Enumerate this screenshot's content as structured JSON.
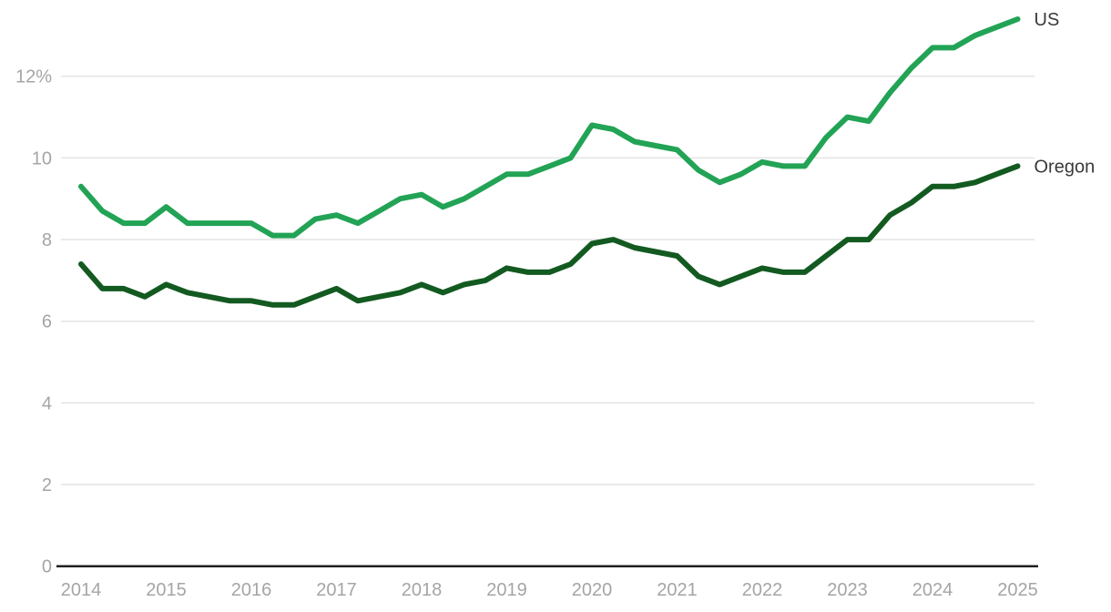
{
  "chart_data": {
    "type": "line",
    "title": "",
    "x_start_year": 2014,
    "points_per_year": 4,
    "x_tick_labels": [
      "2014",
      "2015",
      "2016",
      "2017",
      "2018",
      "2019",
      "2020",
      "2021",
      "2022",
      "2023",
      "2024",
      "2025"
    ],
    "y_tick_values": [
      0,
      2,
      4,
      6,
      8,
      10,
      12
    ],
    "y_tick_labels": [
      "0",
      "2",
      "4",
      "6",
      "8",
      "10",
      "12%"
    ],
    "ylim": [
      0,
      13.9
    ],
    "grid": true,
    "legend_position": "end-of-line-labels",
    "series": [
      {
        "name": "US",
        "color": "#22a355",
        "values": [
          9.3,
          8.7,
          8.4,
          8.4,
          8.8,
          8.4,
          8.4,
          8.4,
          8.4,
          8.1,
          8.1,
          8.5,
          8.6,
          8.4,
          8.7,
          9.0,
          9.1,
          8.8,
          9.0,
          9.3,
          9.6,
          9.6,
          9.8,
          10.0,
          10.8,
          10.7,
          10.4,
          10.3,
          10.2,
          9.7,
          9.4,
          9.6,
          9.9,
          9.8,
          9.8,
          10.5,
          11.0,
          10.9,
          11.6,
          12.2,
          12.7,
          12.7,
          13.0,
          13.2,
          13.4
        ]
      },
      {
        "name": "Oregon",
        "color": "#135a21",
        "values": [
          7.4,
          6.8,
          6.8,
          6.6,
          6.9,
          6.7,
          6.6,
          6.5,
          6.5,
          6.4,
          6.4,
          6.6,
          6.8,
          6.5,
          6.6,
          6.7,
          6.9,
          6.7,
          6.9,
          7.0,
          7.3,
          7.2,
          7.2,
          7.4,
          7.9,
          8.0,
          7.8,
          7.7,
          7.6,
          7.1,
          6.9,
          7.1,
          7.3,
          7.2,
          7.2,
          7.6,
          8.0,
          8.0,
          8.6,
          8.9,
          9.3,
          9.3,
          9.4,
          9.6,
          9.8
        ]
      }
    ]
  },
  "colors": {
    "background": "#ffffff",
    "axis_line": "#1f1f1f",
    "gridline": "#e4e4e4",
    "tick_label": "#a5a5a5",
    "series_label": "#3a3a3a"
  }
}
